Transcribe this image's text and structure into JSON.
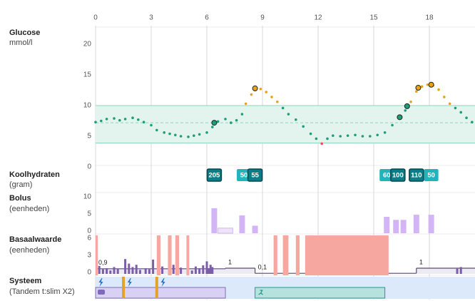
{
  "chart_data": [
    {
      "type": "scatter",
      "title": "Glucose",
      "y_label": "mmol/l",
      "xlim": [
        0,
        20.46
      ],
      "xticks": [
        0,
        3,
        6,
        9,
        12,
        15,
        18
      ],
      "ylim": [
        0,
        20
      ],
      "yticks": [
        0,
        5,
        10,
        15,
        20
      ],
      "target_range": [
        3.9,
        10
      ],
      "target": 7.2,
      "colors": {
        "low": "#e8525a",
        "in_range": "#1e9e78",
        "high": "#e8a317",
        "band": "#e3f4ee",
        "band_line": "#8fd6bd"
      },
      "x": [
        0,
        0.3,
        0.6,
        1,
        1.3,
        1.6,
        2,
        2.3,
        2.6,
        3,
        3.3,
        3.7,
        4,
        4.3,
        4.6,
        5,
        5.3,
        5.6,
        6,
        6.3,
        6.6,
        7,
        7.3,
        7.6,
        7.9,
        8.1,
        8.4,
        8.6,
        8.9,
        9.2,
        9.5,
        9.8,
        10.1,
        10.4,
        10.8,
        11.2,
        11.6,
        11.9,
        12.2,
        12.5,
        12.8,
        13.2,
        13.6,
        14,
        14.4,
        14.8,
        15.2,
        15.6,
        16,
        16.4,
        16.7,
        17,
        17.3,
        17.6,
        17.9,
        18.2,
        18.5,
        18.8,
        19.1,
        19.4,
        19.7,
        20,
        20.3
      ],
      "values": [
        7.3,
        7.5,
        7.8,
        7.9,
        7.6,
        7.8,
        8.0,
        7.7,
        7.3,
        6.8,
        6.0,
        5.6,
        5.4,
        5.2,
        5.0,
        4.9,
        5.1,
        5.3,
        5.6,
        6.5,
        7.4,
        7.8,
        7.2,
        7.6,
        8.6,
        10.3,
        11.8,
        12.8,
        12.7,
        12.2,
        11.4,
        10.6,
        9.6,
        8.6,
        7.7,
        6.6,
        5.4,
        4.6,
        3.8,
        4.6,
        5.1,
        5.0,
        5.1,
        5.2,
        5.0,
        5.0,
        5.2,
        5.6,
        6.8,
        7.9,
        9.2,
        10.6,
        12.3,
        13.1,
        13.4,
        13.3,
        12.6,
        11.4,
        10.3,
        9.6,
        8.9,
        8.0,
        7.3
      ],
      "markers": {
        "x": [
          6.4,
          8.6,
          16.4,
          16.8,
          17.4,
          18.1
        ],
        "values": [
          7.2,
          12.8,
          8.1,
          9.9,
          12.9,
          13.4
        ]
      }
    },
    {
      "type": "labels",
      "title": "Koolhydraten",
      "y_label": "(gram)",
      "x": [
        6.4,
        8.0,
        8.6,
        15.7,
        16.3,
        17.3,
        18.1
      ],
      "values": [
        205,
        50,
        55,
        60,
        100,
        110,
        50
      ],
      "colors": [
        "#0b7d86",
        "#22b3bd",
        "#0b7d86",
        "#22b3bd",
        "#0b7d86",
        "#0b7d86",
        "#22b3bd"
      ]
    },
    {
      "type": "bar",
      "title": "Bolus",
      "y_label": "(eenheden)",
      "ylim": [
        0,
        10
      ],
      "yticks": [
        0,
        5,
        10
      ],
      "color": "#d3b5f5",
      "x": [
        6.4,
        7.9,
        8.6,
        15.7,
        16.2,
        16.6,
        17.3,
        18.1
      ],
      "values": [
        7.3,
        5.2,
        2.2,
        4.8,
        3.9,
        3.9,
        5.4,
        5.4
      ],
      "extended": {
        "x": [
          6.6
        ],
        "x_end": [
          7.4
        ],
        "values": [
          1.5
        ]
      }
    },
    {
      "type": "basal",
      "title": "Basaalwaarde",
      "y_label": "(eenheden)",
      "ylim": [
        0,
        6
      ],
      "yticks": [
        0,
        3,
        6
      ],
      "color": "#7b5ea7",
      "suspend_color": "#f6a8a0",
      "schedule": {
        "x": [
          0,
          7,
          8.6,
          17.3
        ],
        "x_end": [
          7,
          8.6,
          17.3,
          20.46
        ],
        "values": [
          0.9,
          1,
          0.1,
          1
        ],
        "value_labels": [
          "0,9",
          "1",
          "0,1",
          "1"
        ]
      },
      "auto": {
        "x": [
          0.2,
          0.4,
          0.6,
          0.8,
          1.0,
          1.2,
          1.6,
          1.8,
          2.0,
          2.2,
          2.4,
          2.7,
          2.9,
          3.1,
          3.6,
          4.2,
          4.6,
          5.2,
          5.4,
          5.6,
          5.8,
          6.0,
          6.1,
          6.2,
          6.3,
          19.5,
          19.7
        ],
        "values": [
          1.4,
          0.8,
          1.0,
          0.6,
          1.2,
          0.9,
          2.6,
          1.8,
          1.2,
          1.6,
          0.7,
          1.0,
          0.8,
          2.5,
          1.3,
          1.6,
          1.1,
          0.6,
          1.3,
          1.0,
          1.5,
          2.2,
          1.0,
          1.6,
          1.2,
          0.9,
          1.2
        ]
      },
      "suspend": {
        "x": [
          0,
          3.3,
          3.9,
          4.3,
          4.9,
          9.6,
          10.1,
          10.8,
          11.3
        ],
        "x_end": [
          0.12,
          3.5,
          4.1,
          4.5,
          5.05,
          9.8,
          10.4,
          11.0,
          15.8
        ]
      }
    },
    {
      "type": "events",
      "title": "Systeem",
      "y_label": "(Tandem t:slim X2)",
      "site_change": [
        0.25,
        1.8,
        3.6
      ],
      "cartridge": [
        1.5,
        3.3
      ],
      "sleep": [
        0,
        7
      ],
      "exercise": [
        8.6,
        15.6
      ]
    }
  ]
}
